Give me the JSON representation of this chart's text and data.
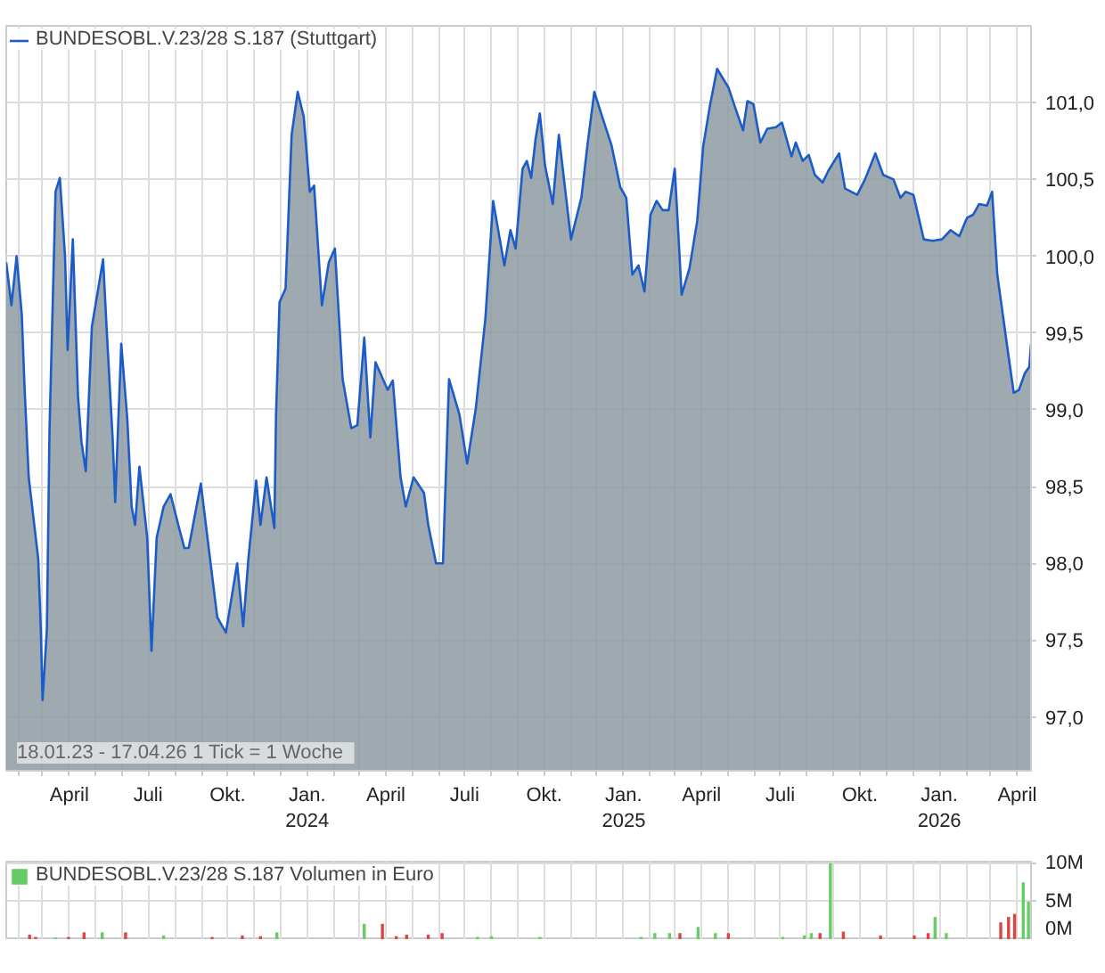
{
  "chart_data": [
    {
      "type": "area",
      "legend": "top left",
      "grid": true,
      "annotations": [
        "18.01.23 - 17.04.26   1 Tick = 1 Woche"
      ],
      "xlim": [
        "2023-01-18",
        "2026-04-17"
      ],
      "ylim": [
        96.65,
        101.5
      ],
      "yticks": [
        {
          "value": 97.0,
          "label": "97,0"
        },
        {
          "value": 97.5,
          "label": "97,5"
        },
        {
          "value": 98.0,
          "label": "98,0"
        },
        {
          "value": 98.5,
          "label": "98,5"
        },
        {
          "value": 99.0,
          "label": "99,0"
        },
        {
          "value": 99.5,
          "label": "99,5"
        },
        {
          "value": 100.0,
          "label": "100,0"
        },
        {
          "value": 100.5,
          "label": "100,5"
        },
        {
          "value": 101.0,
          "label": "101,0"
        }
      ],
      "xticks": [
        {
          "value": "2023-02-01",
          "label": null
        },
        {
          "value": "2023-03-01",
          "label": null
        },
        {
          "value": "2023-04-01",
          "label": "April"
        },
        {
          "value": "2023-05-01",
          "label": null
        },
        {
          "value": "2023-06-01",
          "label": null
        },
        {
          "value": "2023-07-01",
          "label": "Juli"
        },
        {
          "value": "2023-08-01",
          "label": null
        },
        {
          "value": "2023-09-01",
          "label": null
        },
        {
          "value": "2023-10-01",
          "label": "Okt."
        },
        {
          "value": "2023-11-01",
          "label": null
        },
        {
          "value": "2023-12-01",
          "label": null
        },
        {
          "value": "2024-01-01",
          "label": "Jan.\n2024"
        },
        {
          "value": "2024-02-01",
          "label": null
        },
        {
          "value": "2024-03-01",
          "label": null
        },
        {
          "value": "2024-04-01",
          "label": "April"
        },
        {
          "value": "2024-05-01",
          "label": null
        },
        {
          "value": "2024-06-01",
          "label": null
        },
        {
          "value": "2024-07-01",
          "label": "Juli"
        },
        {
          "value": "2024-08-01",
          "label": null
        },
        {
          "value": "2024-09-01",
          "label": null
        },
        {
          "value": "2024-10-01",
          "label": "Okt."
        },
        {
          "value": "2024-11-01",
          "label": null
        },
        {
          "value": "2024-12-01",
          "label": null
        },
        {
          "value": "2025-01-01",
          "label": "Jan.\n2025"
        },
        {
          "value": "2025-02-01",
          "label": null
        },
        {
          "value": "2025-03-01",
          "label": null
        },
        {
          "value": "2025-04-01",
          "label": "April"
        },
        {
          "value": "2025-05-01",
          "label": null
        },
        {
          "value": "2025-06-01",
          "label": null
        },
        {
          "value": "2025-07-01",
          "label": "Juli"
        },
        {
          "value": "2025-08-01",
          "label": null
        },
        {
          "value": "2025-09-01",
          "label": null
        },
        {
          "value": "2025-10-01",
          "label": "Okt."
        },
        {
          "value": "2025-11-01",
          "label": null
        },
        {
          "value": "2025-12-01",
          "label": null
        },
        {
          "value": "2026-01-01",
          "label": "Jan.\n2026"
        },
        {
          "value": "2026-02-01",
          "label": null
        },
        {
          "value": "2026-03-01",
          "label": null
        },
        {
          "value": "2026-04-01",
          "label": "April"
        }
      ],
      "series": [
        {
          "name": "BUNDESOBL.V.23/28 S.187 (Stuttgart)",
          "color": "#1c5cc8",
          "x": [
            "2023-01-18",
            "2023-01-24",
            "2023-01-30",
            "2023-02-05",
            "2023-02-08",
            "2023-02-13",
            "2023-02-24",
            "2023-02-27",
            "2023-03-01",
            "2023-03-06",
            "2023-03-09",
            "2023-03-16",
            "2023-03-21",
            "2023-03-27",
            "2023-03-30",
            "2023-04-05",
            "2023-04-11",
            "2023-04-15",
            "2023-04-20",
            "2023-04-27",
            "2023-05-10",
            "2023-05-14",
            "2023-05-21",
            "2023-05-24",
            "2023-05-31",
            "2023-06-07",
            "2023-06-12",
            "2023-06-16",
            "2023-06-21",
            "2023-06-30",
            "2023-07-05",
            "2023-07-11",
            "2023-07-19",
            "2023-07-27",
            "2023-08-05",
            "2023-08-12",
            "2023-08-17",
            "2023-08-31",
            "2023-09-10",
            "2023-09-19",
            "2023-09-29",
            "2023-10-12",
            "2023-10-19",
            "2023-10-25",
            "2023-11-03",
            "2023-11-08",
            "2023-11-15",
            "2023-11-24",
            "2023-11-26",
            "2023-11-30",
            "2023-12-07",
            "2023-12-14",
            "2023-12-21",
            "2023-12-28",
            "2024-01-04",
            "2024-01-09",
            "2024-01-18",
            "2024-01-26",
            "2024-02-02",
            "2024-02-11",
            "2024-02-21",
            "2024-02-28",
            "2024-03-07",
            "2024-03-14",
            "2024-03-20",
            "2024-04-03",
            "2024-04-09",
            "2024-04-18",
            "2024-04-24",
            "2024-05-03",
            "2024-05-15",
            "2024-05-20",
            "2024-05-29",
            "2024-06-06",
            "2024-06-13",
            "2024-06-25",
            "2024-07-04",
            "2024-07-14",
            "2024-07-25",
            "2024-08-03",
            "2024-08-16",
            "2024-08-23",
            "2024-08-29",
            "2024-09-06",
            "2024-09-11",
            "2024-09-16",
            "2024-09-21",
            "2024-09-26",
            "2024-10-02",
            "2024-10-11",
            "2024-10-18",
            "2024-11-01",
            "2024-11-13",
            "2024-11-20",
            "2024-11-28",
            "2024-12-07",
            "2024-12-18",
            "2024-12-28",
            "2025-01-04",
            "2025-01-11",
            "2025-01-18",
            "2025-01-25",
            "2025-02-01",
            "2025-02-08",
            "2025-02-15",
            "2025-02-22",
            "2025-03-01",
            "2025-03-04",
            "2025-03-09",
            "2025-03-18",
            "2025-03-27",
            "2025-04-03",
            "2025-04-11",
            "2025-04-19",
            "2025-05-02",
            "2025-05-11",
            "2025-05-19",
            "2025-05-24",
            "2025-05-31",
            "2025-06-08",
            "2025-06-16",
            "2025-06-26",
            "2025-07-03",
            "2025-07-14",
            "2025-07-19",
            "2025-07-27",
            "2025-08-03",
            "2025-08-10",
            "2025-08-19",
            "2025-08-26",
            "2025-09-07",
            "2025-09-14",
            "2025-09-28",
            "2025-10-07",
            "2025-10-19",
            "2025-10-28",
            "2025-11-09",
            "2025-11-17",
            "2025-11-23",
            "2025-12-02",
            "2025-12-14",
            "2025-12-24",
            "2026-01-04",
            "2026-01-14",
            "2026-01-24",
            "2026-02-02",
            "2026-02-09",
            "2026-02-16",
            "2026-02-25",
            "2026-03-03",
            "2026-03-09",
            "2026-03-21",
            "2026-03-28",
            "2026-04-03",
            "2026-04-10",
            "2026-04-15",
            "2026-04-17"
          ],
          "values": [
            99.96,
            99.68,
            100.0,
            99.62,
            99.17,
            98.56,
            98.03,
            97.57,
            97.11,
            97.57,
            98.86,
            100.42,
            100.51,
            100.0,
            99.39,
            100.11,
            99.09,
            98.79,
            98.6,
            99.54,
            99.98,
            99.54,
            98.82,
            98.4,
            99.43,
            98.94,
            98.37,
            98.25,
            98.63,
            98.17,
            97.43,
            98.17,
            98.37,
            98.45,
            98.25,
            98.1,
            98.1,
            98.52,
            98.06,
            97.65,
            97.55,
            98.0,
            97.59,
            98.03,
            98.54,
            98.25,
            98.56,
            98.23,
            98.97,
            99.7,
            99.79,
            100.79,
            101.07,
            100.91,
            100.42,
            100.46,
            99.68,
            99.96,
            100.05,
            99.2,
            98.88,
            98.9,
            99.47,
            98.82,
            99.31,
            99.13,
            99.19,
            98.56,
            98.37,
            98.56,
            98.46,
            98.25,
            98.0,
            98.0,
            99.2,
            98.97,
            98.65,
            99.01,
            99.59,
            100.36,
            99.94,
            100.17,
            100.05,
            100.57,
            100.62,
            100.51,
            100.76,
            100.93,
            100.59,
            100.34,
            100.79,
            100.11,
            100.38,
            100.72,
            101.07,
            100.91,
            100.72,
            100.45,
            100.38,
            99.88,
            99.94,
            99.77,
            100.27,
            100.36,
            100.3,
            100.3,
            100.57,
            100.27,
            99.75,
            99.92,
            100.23,
            100.72,
            100.99,
            101.22,
            101.1,
            100.95,
            100.82,
            101.01,
            100.99,
            100.74,
            100.83,
            100.84,
            100.87,
            100.65,
            100.74,
            100.62,
            100.66,
            100.53,
            100.48,
            100.56,
            100.67,
            100.44,
            100.4,
            100.5,
            100.67,
            100.53,
            100.5,
            100.38,
            100.42,
            100.4,
            100.11,
            100.1,
            100.11,
            100.17,
            100.13,
            100.25,
            100.27,
            100.34,
            100.33,
            100.42,
            99.88,
            99.39,
            99.11,
            99.13,
            99.24,
            99.28,
            99.43
          ]
        }
      ]
    },
    {
      "type": "bar",
      "legend": "top left",
      "grid": true,
      "tick_labels": "y",
      "xlim": [
        "2023-01-18",
        "2026-04-17"
      ],
      "ylim": [
        0,
        10.2
      ],
      "yticks": [
        {
          "value": 0,
          "label": "0M"
        },
        {
          "value": 5,
          "label": "5M"
        },
        {
          "value": 10,
          "label": "10M"
        }
      ],
      "xticks": [
        {
          "value": "2023-02-01",
          "label": null
        },
        {
          "value": "2023-03-01",
          "label": null
        },
        {
          "value": "2023-04-01",
          "label": null
        },
        {
          "value": "2023-05-01",
          "label": null
        },
        {
          "value": "2023-06-01",
          "label": null
        },
        {
          "value": "2023-07-01",
          "label": null
        },
        {
          "value": "2023-08-01",
          "label": null
        },
        {
          "value": "2023-09-01",
          "label": null
        },
        {
          "value": "2023-10-01",
          "label": null
        },
        {
          "value": "2023-11-01",
          "label": null
        },
        {
          "value": "2023-12-01",
          "label": null
        },
        {
          "value": "2024-01-01",
          "label": null
        },
        {
          "value": "2024-02-01",
          "label": null
        },
        {
          "value": "2024-03-01",
          "label": null
        },
        {
          "value": "2024-04-01",
          "label": null
        },
        {
          "value": "2024-05-01",
          "label": null
        },
        {
          "value": "2024-06-01",
          "label": null
        },
        {
          "value": "2024-07-01",
          "label": null
        },
        {
          "value": "2024-08-01",
          "label": null
        },
        {
          "value": "2024-09-01",
          "label": null
        },
        {
          "value": "2024-10-01",
          "label": null
        },
        {
          "value": "2024-11-01",
          "label": null
        },
        {
          "value": "2024-12-01",
          "label": null
        },
        {
          "value": "2025-01-01",
          "label": null
        },
        {
          "value": "2025-02-01",
          "label": null
        },
        {
          "value": "2025-03-01",
          "label": null
        },
        {
          "value": "2025-04-01",
          "label": null
        },
        {
          "value": "2025-05-01",
          "label": null
        },
        {
          "value": "2025-06-01",
          "label": null
        },
        {
          "value": "2025-07-01",
          "label": null
        },
        {
          "value": "2025-08-01",
          "label": null
        },
        {
          "value": "2025-09-01",
          "label": null
        },
        {
          "value": "2025-10-01",
          "label": null
        },
        {
          "value": "2025-11-01",
          "label": null
        },
        {
          "value": "2025-12-01",
          "label": null
        },
        {
          "value": "2026-01-01",
          "label": null
        },
        {
          "value": "2026-02-01",
          "label": null
        },
        {
          "value": "2026-03-01",
          "label": null
        },
        {
          "value": "2026-04-01",
          "label": null
        }
      ],
      "series": [
        {
          "name": "BUNDESOBL.V.23/28 S.187 Volumen in Euro",
          "color": "#66cc66",
          "x": [
            "2023-02-14",
            "2023-02-21",
            "2023-03-16",
            "2023-03-31",
            "2023-04-18",
            "2023-05-09",
            "2023-06-05",
            "2023-07-19",
            "2023-09-13",
            "2023-10-18",
            "2023-11-08",
            "2023-11-27",
            "2024-03-07",
            "2024-03-28",
            "2024-04-13",
            "2024-04-25",
            "2024-05-20",
            "2024-06-05",
            "2024-07-16",
            "2024-08-01",
            "2024-09-26",
            "2025-01-21",
            "2025-02-06",
            "2025-02-23",
            "2025-03-07",
            "2025-03-28",
            "2025-04-17",
            "2025-05-02",
            "2025-07-04",
            "2025-07-29",
            "2025-08-06",
            "2025-08-16",
            "2025-08-28",
            "2025-09-12",
            "2025-10-25",
            "2025-12-03",
            "2025-12-19",
            "2025-12-27",
            "2026-01-09",
            "2026-03-13",
            "2026-03-22",
            "2026-03-29",
            "2026-04-08",
            "2026-04-14"
          ],
          "values": [
            0.7,
            0.4,
            0.3,
            0.4,
            1.0,
            1.0,
            1.0,
            0.6,
            0.4,
            0.6,
            0.5,
            1.0,
            2.1,
            2.1,
            0.5,
            0.7,
            0.7,
            0.9,
            0.4,
            0.5,
            0.4,
            0.4,
            0.9,
            0.9,
            0.9,
            1.7,
            0.9,
            0.9,
            0.4,
            0.6,
            0.9,
            0.9,
            10.0,
            1.1,
            0.6,
            0.6,
            0.9,
            3.0,
            0.9,
            2.3,
            3.0,
            3.4,
            7.5,
            5.0
          ],
          "colors": [
            "#dd4444",
            "#dd4444",
            "#66cc66",
            "#dd4444",
            "#dd4444",
            "#66cc66",
            "#dd4444",
            "#66cc66",
            "#dd4444",
            "#dd4444",
            "#dd4444",
            "#66cc66",
            "#66cc66",
            "#dd4444",
            "#dd4444",
            "#dd4444",
            "#dd4444",
            "#dd4444",
            "#66cc66",
            "#66cc66",
            "#66cc66",
            "#66cc66",
            "#66cc66",
            "#66cc66",
            "#dd4444",
            "#66cc66",
            "#66cc66",
            "#dd4444",
            "#66cc66",
            "#66cc66",
            "#66cc66",
            "#dd4444",
            "#66cc66",
            "#dd4444",
            "#dd4444",
            "#dd4444",
            "#dd4444",
            "#66cc66",
            "#66cc66",
            "#dd4444",
            "#dd4444",
            "#dd4444",
            "#66cc66",
            "#66cc66"
          ]
        }
      ]
    }
  ]
}
